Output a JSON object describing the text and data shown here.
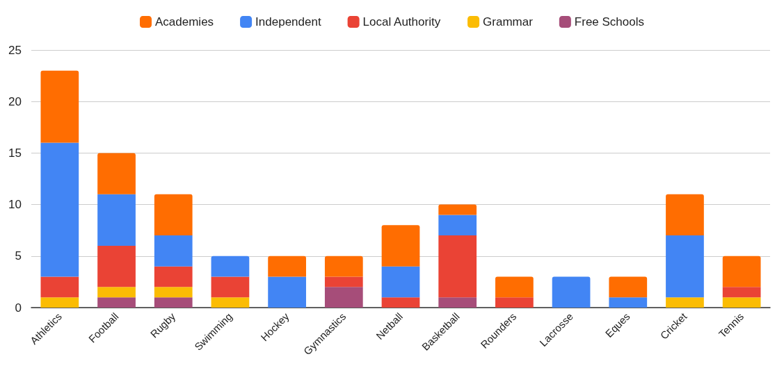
{
  "chart_data": {
    "type": "bar",
    "stacked": true,
    "categories": [
      "Athletics",
      "Football",
      "Rugby",
      "Swimming",
      "Hockey",
      "Gymnastics",
      "Netball",
      "Basketball",
      "Rounders",
      "Lacrosse",
      "Eques",
      "Cricket",
      "Tennis"
    ],
    "series": [
      {
        "name": "Free Schools",
        "color": "#a64d79",
        "values": [
          0,
          1,
          1,
          0,
          0,
          2,
          0,
          1,
          0,
          0,
          0,
          0,
          0
        ]
      },
      {
        "name": "Grammar",
        "color": "#fbbc04",
        "values": [
          1,
          1,
          1,
          1,
          0,
          0,
          0,
          0,
          0,
          0,
          0,
          1,
          1
        ]
      },
      {
        "name": "Local Authority",
        "color": "#ea4335",
        "values": [
          2,
          4,
          2,
          2,
          0,
          1,
          1,
          6,
          1,
          0,
          0,
          0,
          1
        ]
      },
      {
        "name": "Independent",
        "color": "#4285f4",
        "values": [
          13,
          5,
          3,
          2,
          3,
          0,
          3,
          2,
          0,
          3,
          1,
          6,
          0
        ]
      },
      {
        "name": "Academies",
        "color": "#ff6d01",
        "values": [
          7,
          4,
          4,
          0,
          2,
          2,
          4,
          1,
          2,
          0,
          2,
          4,
          3
        ]
      }
    ],
    "ylim": [
      0,
      25
    ],
    "yticks": [
      0,
      5,
      10,
      15,
      20,
      25
    ],
    "grid": "y",
    "legend": "top"
  }
}
